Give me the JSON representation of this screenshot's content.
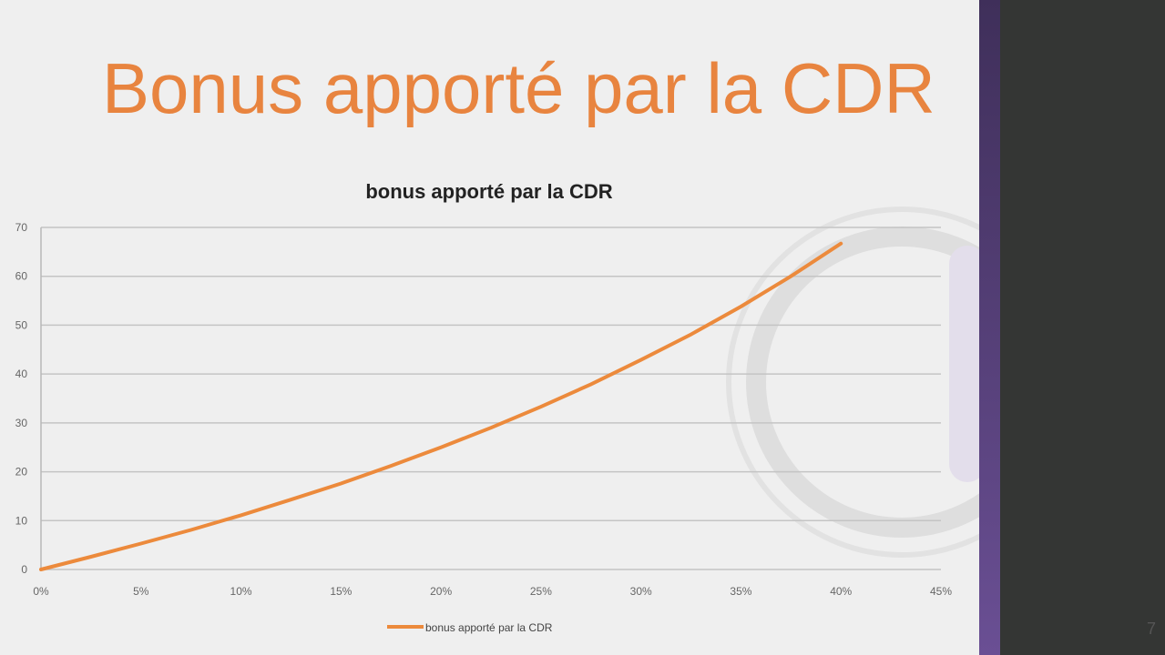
{
  "slide": {
    "title": "Bonus apporté par la CDR",
    "page_number": "7"
  },
  "colors": {
    "title": "#e8843f",
    "series": "#ec8a3c",
    "sidebar_accent": "#5a4283",
    "background_dark": "#343634"
  },
  "chart_data": {
    "type": "line",
    "title": "bonus apporté par la CDR",
    "xlabel": "",
    "ylabel": "",
    "xlim": [
      0,
      45
    ],
    "ylim": [
      0,
      70
    ],
    "x_tick_labels": [
      "0%",
      "5%",
      "10%",
      "15%",
      "20%",
      "25%",
      "30%",
      "35%",
      "40%",
      "45%"
    ],
    "x_ticks": [
      0,
      5,
      10,
      15,
      20,
      25,
      30,
      35,
      40,
      45
    ],
    "y_ticks": [
      0,
      10,
      20,
      30,
      40,
      50,
      60,
      70
    ],
    "grid": "horizontal",
    "legend": "bottom",
    "series": [
      {
        "name": "bonus apporté par la CDR",
        "x": [
          0,
          2.5,
          5,
          7.5,
          10,
          12.5,
          15,
          17.5,
          20,
          22.5,
          25,
          27.5,
          30,
          32.5,
          35,
          37.5,
          40
        ],
        "y": [
          0,
          2.6,
          5.3,
          8.1,
          11.1,
          14.3,
          17.6,
          21.2,
          25,
          29.0,
          33.3,
          37.9,
          42.9,
          48.1,
          53.8,
          60.0,
          66.7
        ]
      }
    ]
  }
}
